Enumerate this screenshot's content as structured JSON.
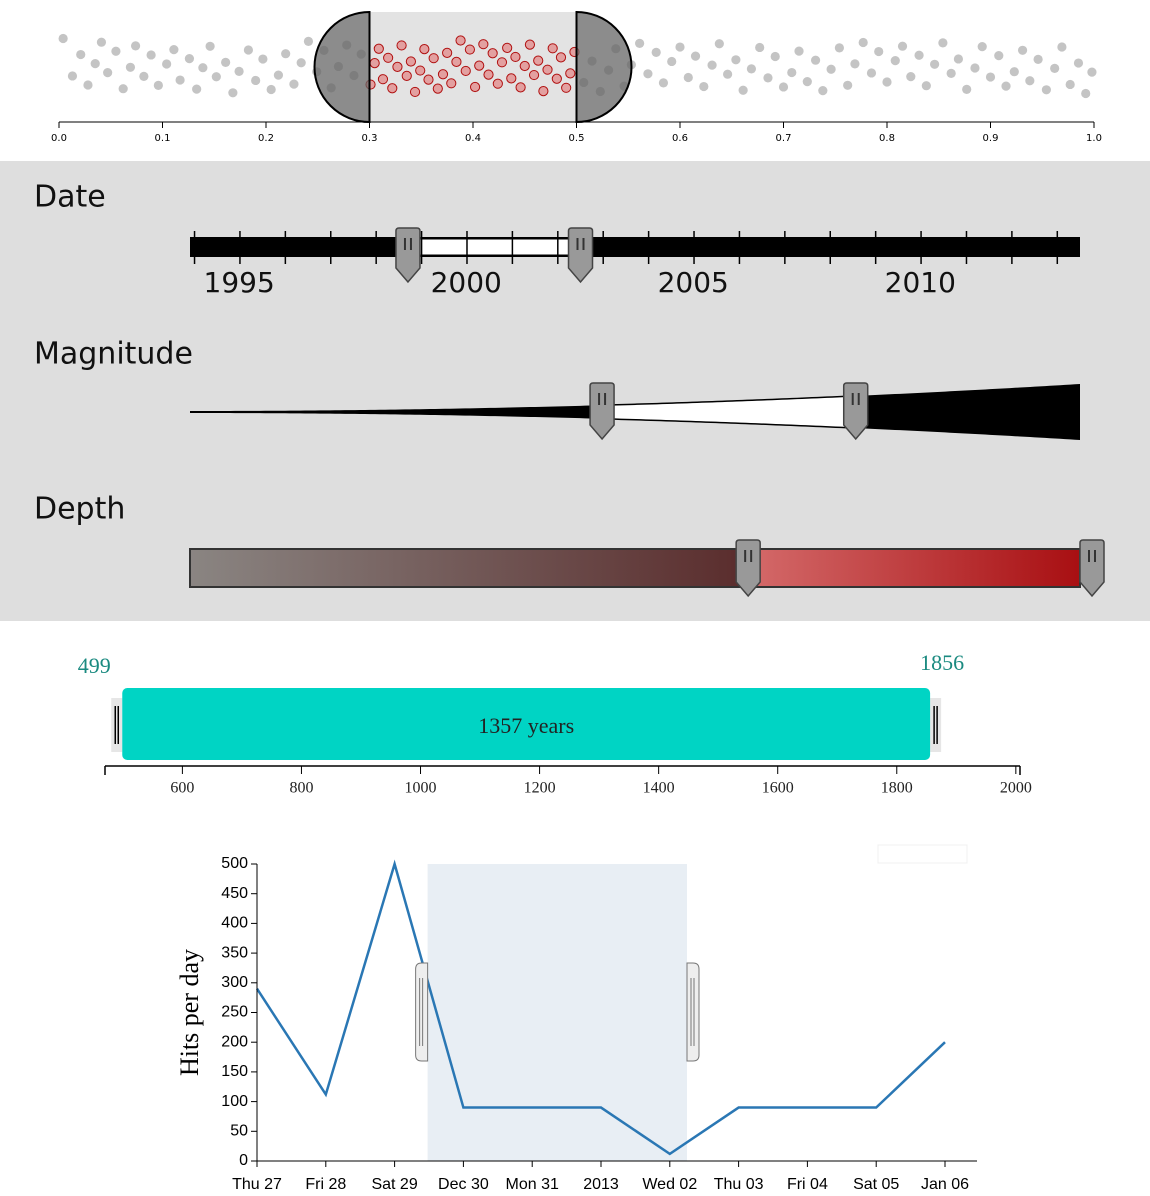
{
  "chart_data": [
    {
      "type": "strip",
      "x": [
        0.004,
        0.013,
        0.021,
        0.028,
        0.035,
        0.041,
        0.047,
        0.055,
        0.062,
        0.069,
        0.074,
        0.082,
        0.089,
        0.096,
        0.104,
        0.111,
        0.117,
        0.126,
        0.133,
        0.139,
        0.146,
        0.152,
        0.161,
        0.168,
        0.174,
        0.183,
        0.19,
        0.197,
        0.205,
        0.212,
        0.219,
        0.227,
        0.234,
        0.241,
        0.249,
        0.256,
        0.263,
        0.27,
        0.278,
        0.285,
        0.292,
        0.301,
        0.305,
        0.309,
        0.313,
        0.318,
        0.322,
        0.327,
        0.331,
        0.336,
        0.34,
        0.344,
        0.349,
        0.353,
        0.357,
        0.362,
        0.366,
        0.371,
        0.375,
        0.379,
        0.384,
        0.388,
        0.393,
        0.397,
        0.402,
        0.406,
        0.41,
        0.415,
        0.419,
        0.424,
        0.428,
        0.433,
        0.437,
        0.441,
        0.446,
        0.45,
        0.455,
        0.459,
        0.463,
        0.468,
        0.472,
        0.477,
        0.481,
        0.485,
        0.49,
        0.494,
        0.498,
        0.507,
        0.515,
        0.523,
        0.531,
        0.538,
        0.546,
        0.553,
        0.561,
        0.569,
        0.577,
        0.584,
        0.592,
        0.6,
        0.608,
        0.615,
        0.623,
        0.631,
        0.638,
        0.646,
        0.654,
        0.661,
        0.669,
        0.677,
        0.685,
        0.692,
        0.7,
        0.708,
        0.715,
        0.723,
        0.731,
        0.738,
        0.746,
        0.754,
        0.762,
        0.769,
        0.777,
        0.785,
        0.792,
        0.8,
        0.808,
        0.815,
        0.823,
        0.831,
        0.838,
        0.846,
        0.854,
        0.862,
        0.869,
        0.877,
        0.885,
        0.892,
        0.9,
        0.908,
        0.915,
        0.923,
        0.931,
        0.938,
        0.946,
        0.954,
        0.962,
        0.969,
        0.977,
        0.985,
        0.992,
        0.998
      ],
      "xlim": [
        0,
        1
      ],
      "xticks": [
        {
          "value": 0,
          "label": "0.0"
        },
        0.1,
        0.2,
        0.3,
        0.4,
        0.5,
        0.6,
        0.7,
        0.8,
        0.9,
        {
          "value": 1,
          "label": "1.0"
        }
      ],
      "brush": [
        0.3,
        0.5
      ],
      "color": "#555555",
      "selected_color": "#e36a6a"
    },
    {
      "type": "sliders",
      "sliders": [
        {
          "label": "Date",
          "style": "bar",
          "xlim": [
            1994.9,
            2014.5
          ],
          "xticks": [
            1995,
            2000,
            2005,
            2010
          ],
          "minor_xticks": [
            1995,
            1996,
            1997,
            1998,
            1999,
            2000,
            2001,
            2002,
            2003,
            2004,
            2005,
            2006,
            2007,
            2008,
            2009,
            2010,
            2011,
            2012,
            2013,
            2014
          ],
          "selection": [
            1999.7,
            2003.5
          ]
        },
        {
          "label": "Magnitude",
          "style": "wedge",
          "xlim": [
            0,
            10
          ],
          "selection": [
            4.63,
            7.48
          ]
        },
        {
          "label": "Depth",
          "style": "gradient",
          "xlim": [
            0,
            700
          ],
          "selection": [
            439,
            700
          ]
        }
      ]
    },
    {
      "type": "range",
      "xlim": [
        470,
        2007
      ],
      "xticks": [
        600,
        800,
        1000,
        1200,
        1400,
        1600,
        1800,
        2000
      ],
      "selection": [
        499,
        1856
      ],
      "span_label": "1357 years",
      "color": "#00d4c4",
      "label_color": "#1a8a80"
    },
    {
      "type": "line",
      "categories": [
        "Thu 27",
        "Fri 28",
        "Sat 29",
        "Dec 30",
        "Mon 31",
        "2013",
        "Wed 02",
        "Thu 03",
        "Fri 04",
        "Sat 05",
        "Jan 06"
      ],
      "values": [
        290,
        112,
        500,
        90,
        90,
        90,
        12,
        90,
        90,
        90,
        200
      ],
      "ylim": [
        0,
        500
      ],
      "yticks": [
        0,
        50,
        100,
        150,
        200,
        250,
        300,
        350,
        400,
        450,
        500
      ],
      "y_label": "Hits per day",
      "brush": [
        2.48,
        6.25
      ],
      "color": "#2a77b4"
    }
  ]
}
